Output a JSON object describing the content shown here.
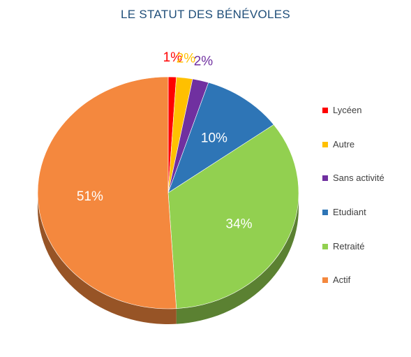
{
  "chart_data": {
    "type": "pie",
    "title": "LE STATUT  DES BÉNÉVOLES",
    "legend_position": "right",
    "slices": [
      {
        "label": "Lycéen",
        "value": 1,
        "display": "1%",
        "color": "#ff0000",
        "label_color": "#ff0000",
        "label_position": "outside"
      },
      {
        "label": "Autre",
        "value": 2,
        "display": "2%",
        "color": "#ffc000",
        "label_color": "#ffc000",
        "label_position": "outside"
      },
      {
        "label": "Sans activité",
        "value": 2,
        "display": "2%",
        "color": "#7030a0",
        "label_color": "#7030a0",
        "label_position": "outside"
      },
      {
        "label": "Etudiant",
        "value": 10,
        "display": "10%",
        "color": "#2e75b6",
        "label_color": "#ffffff",
        "label_position": "inside"
      },
      {
        "label": "Retraité",
        "value": 34,
        "display": "34%",
        "color": "#92d050",
        "label_color": "#ffffff",
        "label_position": "inside"
      },
      {
        "label": "Actif",
        "value": 51,
        "display": "51%",
        "color": "#f4883e",
        "label_color": "#ffffff",
        "label_position": "inside"
      }
    ]
  }
}
